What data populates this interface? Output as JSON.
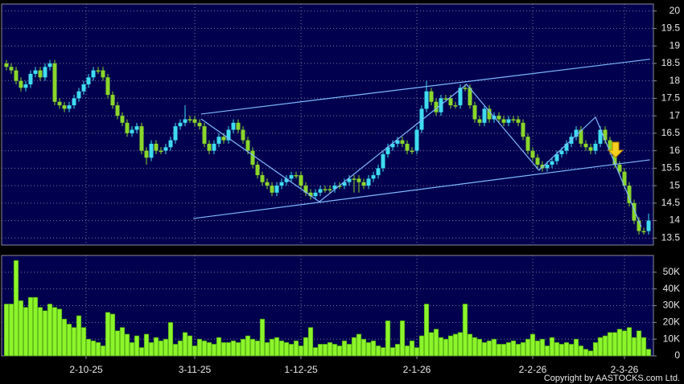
{
  "chart_data": [
    {
      "type": "candlestick",
      "xlim": [
        -1,
        134
      ],
      "xticks": [
        {
          "value": 16.5,
          "label": "2-10-25"
        },
        {
          "value": 39,
          "label": "3-11-25"
        },
        {
          "value": 61,
          "label": "1-12-25"
        },
        {
          "value": 85,
          "label": "2-1-26"
        },
        {
          "value": 109,
          "label": "2-2-26"
        },
        {
          "value": 128,
          "label": "2-3-26"
        }
      ],
      "ylim": [
        13.3,
        20.2
      ],
      "yticks": [
        13.5,
        14,
        14.5,
        15,
        15.5,
        16,
        16.5,
        17,
        17.5,
        18,
        18.5,
        19,
        19.5,
        20
      ],
      "grid": true,
      "up_color": "#3fdcf0",
      "down_color": "#8ad62a",
      "line_color": "#7fb8ff",
      "open": [
        18.5,
        18.4,
        18.3,
        18.0,
        17.8,
        17.9,
        18.2,
        18.3,
        18.1,
        18.4,
        18.5,
        17.4,
        17.3,
        17.2,
        17.3,
        17.5,
        17.7,
        17.9,
        18.1,
        18.3,
        18.3,
        18.1,
        17.6,
        17.3,
        17.0,
        16.8,
        16.5,
        16.6,
        16.7,
        16.0,
        15.8,
        16.2,
        16.0,
        16.0,
        16.1,
        16.3,
        16.7,
        16.8,
        16.9,
        16.9,
        16.8,
        16.7,
        16.2,
        16.0,
        16.2,
        16.4,
        16.3,
        16.6,
        16.8,
        16.6,
        16.3,
        16.0,
        15.6,
        15.3,
        15.1,
        15.0,
        14.8,
        15.0,
        15.1,
        15.2,
        15.3,
        15.3,
        15.0,
        14.8,
        14.7,
        14.8,
        14.9,
        14.9,
        14.9,
        15.0,
        15.0,
        15.1,
        15.2,
        15.2,
        15.1,
        15.0,
        15.2,
        15.3,
        15.5,
        15.9,
        16.1,
        16.2,
        16.3,
        16.2,
        16.0,
        16.0,
        16.6,
        17.2,
        17.7,
        17.4,
        17.1,
        17.5,
        17.5,
        17.3,
        17.3,
        17.8,
        17.8,
        17.3,
        16.9,
        16.8,
        17.2,
        16.9,
        17.0,
        16.9,
        16.8,
        16.9,
        16.9,
        16.8,
        16.4,
        16.0,
        15.8,
        15.6,
        15.5,
        15.6,
        15.7,
        15.9,
        16.0,
        16.2,
        16.4,
        16.6,
        16.2,
        16.1,
        16.0,
        16.2,
        16.6,
        16.3,
        16.0,
        15.6,
        15.4,
        15.0,
        14.5,
        14.0,
        13.7,
        13.7
      ],
      "high": [
        18.6,
        18.5,
        18.4,
        18.1,
        18.0,
        18.3,
        18.4,
        18.4,
        18.5,
        18.6,
        18.6,
        17.5,
        17.4,
        17.4,
        17.6,
        17.8,
        18.0,
        18.2,
        18.4,
        18.4,
        18.4,
        18.2,
        17.7,
        17.4,
        17.1,
        16.9,
        16.7,
        16.8,
        16.8,
        16.1,
        16.3,
        16.3,
        16.1,
        16.2,
        16.4,
        16.8,
        16.9,
        17.3,
        17.0,
        17.0,
        16.9,
        16.8,
        16.3,
        16.3,
        16.5,
        16.5,
        16.7,
        16.9,
        16.9,
        16.7,
        16.4,
        16.1,
        15.7,
        15.4,
        15.2,
        15.1,
        15.1,
        15.2,
        15.3,
        15.4,
        15.4,
        15.4,
        15.1,
        14.9,
        14.9,
        15.0,
        15.0,
        15.0,
        15.1,
        15.1,
        15.2,
        15.3,
        15.3,
        15.3,
        15.2,
        15.3,
        15.4,
        15.6,
        16.0,
        16.2,
        16.3,
        16.4,
        16.4,
        16.3,
        16.1,
        16.7,
        17.3,
        18.0,
        17.8,
        17.5,
        17.6,
        17.6,
        17.6,
        17.4,
        17.9,
        17.9,
        17.9,
        17.4,
        17.0,
        17.3,
        17.3,
        17.1,
        17.1,
        17.0,
        17.0,
        17.0,
        17.0,
        16.9,
        16.5,
        16.1,
        15.9,
        15.7,
        15.7,
        15.8,
        16.0,
        16.1,
        16.3,
        16.5,
        16.7,
        16.7,
        16.3,
        16.2,
        16.3,
        16.7,
        16.7,
        16.4,
        16.1,
        15.7,
        15.5,
        15.1,
        14.6,
        14.1,
        13.8,
        14.2
      ],
      "low": [
        18.3,
        18.2,
        17.9,
        17.7,
        17.7,
        17.8,
        18.1,
        18.0,
        18.0,
        18.3,
        17.3,
        17.2,
        17.1,
        17.1,
        17.2,
        17.4,
        17.6,
        17.8,
        18.0,
        18.2,
        18.0,
        17.5,
        17.2,
        16.9,
        16.7,
        16.4,
        16.4,
        16.5,
        15.9,
        15.6,
        15.7,
        15.9,
        15.9,
        15.9,
        16.0,
        16.2,
        16.6,
        16.7,
        16.8,
        16.7,
        16.6,
        16.1,
        15.9,
        15.9,
        16.1,
        16.2,
        16.2,
        16.5,
        16.5,
        16.2,
        15.9,
        15.5,
        15.2,
        15.0,
        14.9,
        14.7,
        14.7,
        14.9,
        15.0,
        15.1,
        15.2,
        14.9,
        14.7,
        14.6,
        14.6,
        14.7,
        14.8,
        14.8,
        14.8,
        14.9,
        14.9,
        15.0,
        14.8,
        14.8,
        14.9,
        14.9,
        15.1,
        15.2,
        15.4,
        15.8,
        16.0,
        16.1,
        16.1,
        15.9,
        15.9,
        15.9,
        16.5,
        17.1,
        17.3,
        17.0,
        17.0,
        17.4,
        17.2,
        17.2,
        17.2,
        17.7,
        17.2,
        16.8,
        16.7,
        16.7,
        16.8,
        16.8,
        16.8,
        16.7,
        16.7,
        16.8,
        16.7,
        16.3,
        15.9,
        15.7,
        15.5,
        15.4,
        15.4,
        15.5,
        15.6,
        15.8,
        15.9,
        16.1,
        16.3,
        16.1,
        16.0,
        15.9,
        15.9,
        16.1,
        16.2,
        15.9,
        15.5,
        15.3,
        14.9,
        14.4,
        13.9,
        13.6,
        13.6,
        13.6
      ],
      "close": [
        18.4,
        18.3,
        18.0,
        17.8,
        17.9,
        18.2,
        18.3,
        18.1,
        18.4,
        18.5,
        17.4,
        17.3,
        17.2,
        17.3,
        17.5,
        17.7,
        17.9,
        18.1,
        18.3,
        18.3,
        18.1,
        17.6,
        17.3,
        17.0,
        16.8,
        16.5,
        16.6,
        16.7,
        16.0,
        15.8,
        16.2,
        16.0,
        16.0,
        16.1,
        16.3,
        16.7,
        16.8,
        16.9,
        16.9,
        16.8,
        16.7,
        16.2,
        16.0,
        16.2,
        16.4,
        16.3,
        16.6,
        16.8,
        16.6,
        16.3,
        16.0,
        15.6,
        15.3,
        15.1,
        15.0,
        14.8,
        15.0,
        15.1,
        15.2,
        15.3,
        15.3,
        15.0,
        14.8,
        14.7,
        14.8,
        14.9,
        14.9,
        14.9,
        15.0,
        15.0,
        15.1,
        15.2,
        15.2,
        15.1,
        15.0,
        15.2,
        15.3,
        15.5,
        15.9,
        16.1,
        16.2,
        16.3,
        16.2,
        16.0,
        16.0,
        16.6,
        17.2,
        17.7,
        17.4,
        17.1,
        17.5,
        17.5,
        17.3,
        17.3,
        17.8,
        17.8,
        17.3,
        16.9,
        16.8,
        17.2,
        16.9,
        17.0,
        16.9,
        16.8,
        16.9,
        16.9,
        16.8,
        16.4,
        16.0,
        15.8,
        15.6,
        15.5,
        15.6,
        15.7,
        15.9,
        16.0,
        16.2,
        16.4,
        16.6,
        16.2,
        16.1,
        16.0,
        16.2,
        16.6,
        16.3,
        16.0,
        15.6,
        15.4,
        15.0,
        14.5,
        14.0,
        13.7,
        13.7,
        14.0
      ],
      "lines": [
        {
          "x": [
            40.3,
            133.3
          ],
          "y": [
            17.05,
            18.62
          ]
        },
        {
          "x": [
            38.7,
            133.3
          ],
          "y": [
            14.06,
            15.74
          ]
        },
        {
          "x": [
            40.3,
            64.8,
            95.3,
            110.3,
            122,
            131.5
          ],
          "y": [
            16.91,
            14.54,
            17.9,
            15.44,
            16.96,
            13.82
          ]
        }
      ]
    },
    {
      "type": "bar",
      "xlim": [
        -1,
        134
      ],
      "ylim": [
        0,
        60000
      ],
      "yticks": [
        0,
        {
          "value": 10000,
          "label": "10K"
        },
        {
          "value": 20000,
          "label": "20K"
        },
        {
          "value": 30000,
          "label": "30K"
        },
        {
          "value": 40000,
          "label": "40K"
        },
        {
          "value": 50000,
          "label": "50K"
        }
      ],
      "color": "#8cf52a",
      "values": [
        31000,
        31000,
        57000,
        33000,
        29000,
        35000,
        35000,
        29000,
        27000,
        31000,
        29000,
        28000,
        22000,
        19000,
        17000,
        24000,
        17000,
        10000,
        9000,
        8000,
        6000,
        26000,
        25000,
        15000,
        17000,
        13000,
        8000,
        12000,
        5000,
        13000,
        8000,
        11000,
        9000,
        10000,
        20000,
        7000,
        9000,
        14000,
        12000,
        6000,
        10000,
        9000,
        8000,
        7000,
        11000,
        8000,
        8000,
        9000,
        8000,
        10000,
        12000,
        10000,
        9000,
        22000,
        8000,
        10000,
        11000,
        9000,
        8000,
        7000,
        9000,
        6000,
        11000,
        17000,
        5000,
        7000,
        7000,
        8000,
        7000,
        6000,
        9000,
        7000,
        11000,
        13000,
        10000,
        8000,
        9000,
        6000,
        5000,
        21000,
        5000,
        7000,
        21000,
        6000,
        9000,
        5000,
        12000,
        31000,
        14000,
        16000,
        11000,
        10000,
        12000,
        13000,
        14000,
        31000,
        13000,
        11000,
        10000,
        8000,
        9000,
        10000,
        7000,
        7000,
        8000,
        9000,
        7000,
        8000,
        10000,
        13000,
        9000,
        10000,
        6000,
        11000,
        8000,
        7000,
        8000,
        7000,
        10000,
        6000,
        4000,
        3000,
        8000,
        11000,
        12000,
        14000,
        14000,
        16000,
        15000,
        17000,
        11000,
        15000,
        11000,
        4000
      ]
    }
  ],
  "copyright": "Copyright by AASTOCKS.com Ltd."
}
